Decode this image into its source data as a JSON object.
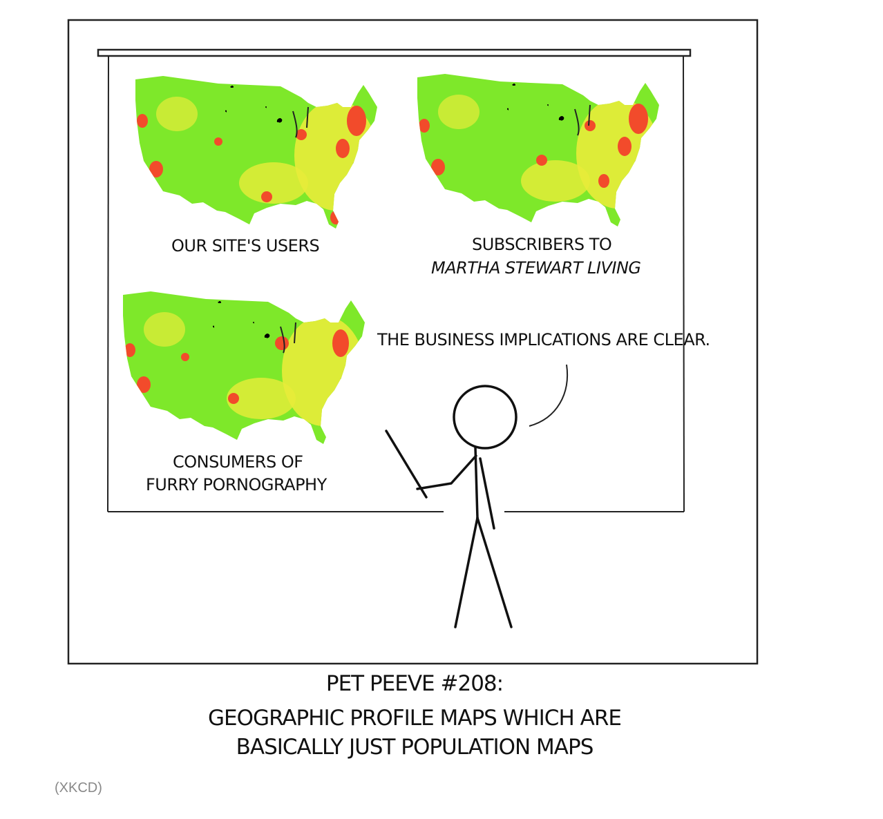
{
  "comic": {
    "maps": [
      {
        "name": "site-users",
        "label_lines": [
          "OUR SITE'S USERS"
        ]
      },
      {
        "name": "martha",
        "label_lines": [
          "SUBSCRIBERS TO",
          "MARTHA STEWART LIVING"
        ]
      },
      {
        "name": "furry",
        "label_lines": [
          "CONSUMERS OF",
          "FURRY PORNOGRAPHY"
        ]
      }
    ],
    "speech": "THE BUSINESS IMPLICATIONS ARE CLEAR.",
    "caption": {
      "line1": "PET PEEVE #208:",
      "line2": "GEOGRAPHIC PROFILE MAPS WHICH ARE",
      "line3": "BASICALLY JUST POPULATION MAPS"
    },
    "credit": "(XKCD)",
    "colors": {
      "low": "#7ee82a",
      "mid": "#e8ec3a",
      "high": "#f24b2b",
      "ink": "#111111"
    }
  }
}
